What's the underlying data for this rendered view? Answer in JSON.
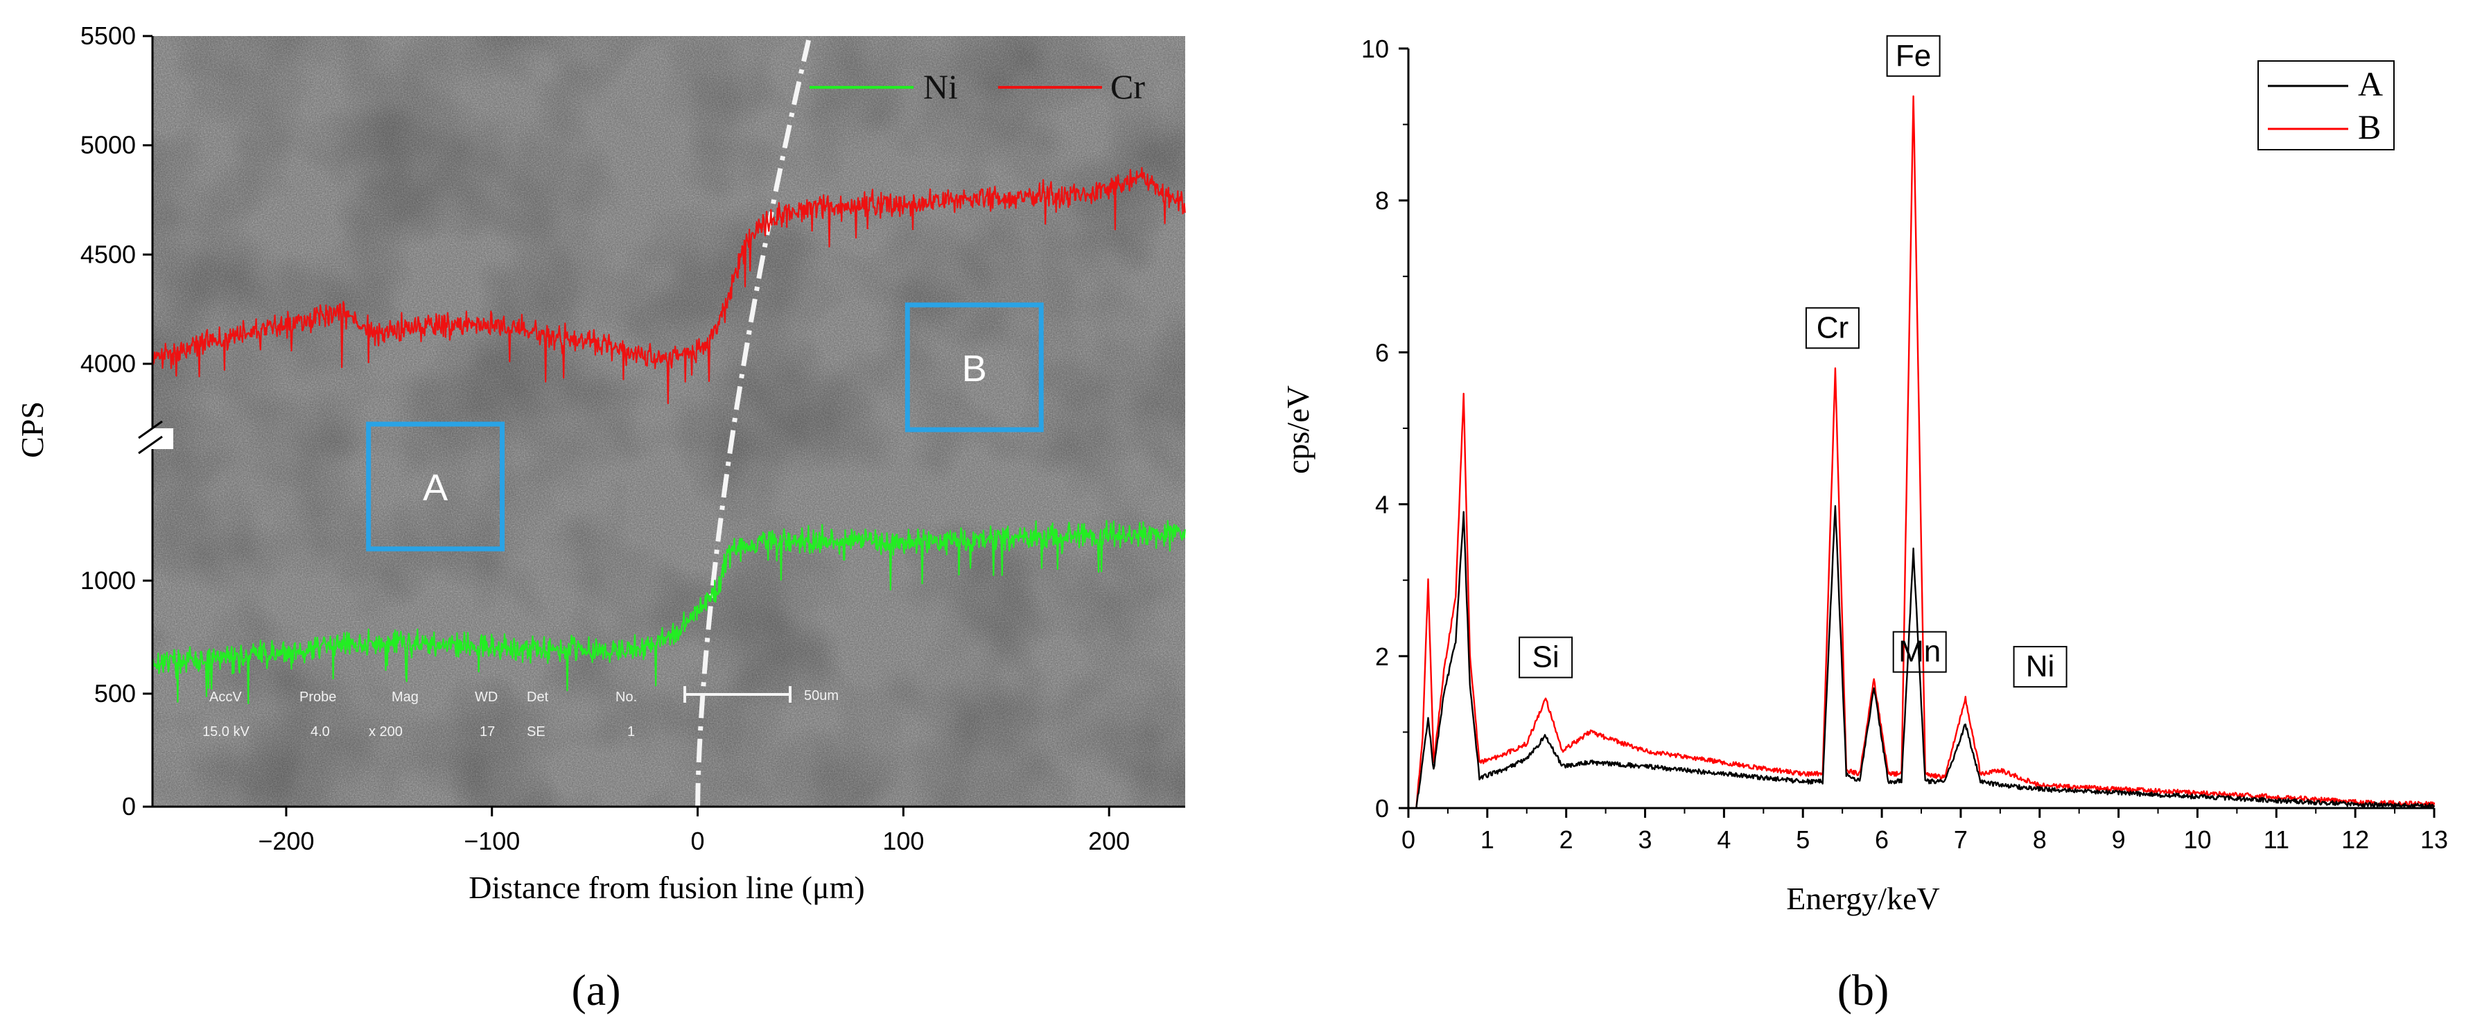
{
  "figure": {
    "panel_a_label": "(a)",
    "panel_b_label": "(b)",
    "panel_a_label_letter": "a",
    "panel_b_label_letter": "b"
  },
  "chart_data": [
    {
      "id": "a",
      "type": "line",
      "title": "",
      "xlabel": "Distance from fusion line (μm)",
      "ylabel": "CPS",
      "xlim": [
        -265,
        237
      ],
      "y_axis_broken": true,
      "ylim_lower": [
        0,
        1300
      ],
      "ylim_upper": [
        3800,
        5500
      ],
      "x_ticks": [
        -200,
        -100,
        0,
        100,
        200
      ],
      "x_tick_labels": [
        "−200",
        "−100",
        "0",
        "100",
        "200"
      ],
      "y_ticks": [
        0,
        500,
        1000,
        4000,
        4500,
        5000,
        5500
      ],
      "y_tick_labels": [
        "0",
        "500",
        "1000",
        "4000",
        "4500",
        "5000",
        "5500"
      ],
      "legend": {
        "position": "top-right",
        "entries": [
          "Ni",
          "Cr"
        ]
      },
      "background": "SEM micrograph",
      "fusion_line_x": 0,
      "region_boxes": [
        {
          "label": "A",
          "x_range": [
            -160,
            -95
          ]
        },
        {
          "label": "B",
          "x_range": [
            102,
            167
          ]
        }
      ],
      "sem_info": {
        "headers": [
          "AccV",
          "Probe",
          "Mag",
          "WD",
          "Det",
          "No."
        ],
        "values": [
          "15.0 kV",
          "4.0",
          "x 200",
          "17",
          "SE",
          "1"
        ],
        "scale_bar": "50um"
      },
      "series": [
        {
          "name": "Ni",
          "color": "#22ee22",
          "x": [
            -265,
            -240,
            -200,
            -170,
            -140,
            -100,
            -60,
            -30,
            -10,
            0,
            10,
            15,
            30,
            60,
            100,
            130,
            160,
            200,
            237
          ],
          "y": [
            640,
            650,
            680,
            720,
            730,
            700,
            700,
            690,
            760,
            880,
            960,
            1130,
            1170,
            1180,
            1170,
            1180,
            1190,
            1200,
            1210
          ]
        },
        {
          "name": "Cr",
          "color": "#ee1111",
          "x": [
            -265,
            -240,
            -200,
            -175,
            -160,
            -130,
            -100,
            -70,
            -50,
            -30,
            -15,
            -5,
            5,
            15,
            25,
            40,
            60,
            100,
            130,
            160,
            200,
            215,
            237
          ],
          "y": [
            4020,
            4100,
            4180,
            4250,
            4150,
            4170,
            4180,
            4120,
            4100,
            4040,
            4020,
            4050,
            4100,
            4300,
            4600,
            4680,
            4720,
            4730,
            4750,
            4760,
            4790,
            4860,
            4720
          ]
        }
      ]
    },
    {
      "id": "b",
      "type": "line",
      "title": "",
      "xlabel": "Energy/keV",
      "ylabel": "cps/eV",
      "xlim": [
        0,
        13
      ],
      "ylim": [
        0,
        10
      ],
      "x_ticks": [
        0,
        1,
        2,
        3,
        4,
        5,
        6,
        7,
        8,
        9,
        10,
        11,
        12,
        13
      ],
      "y_ticks": [
        0,
        2,
        4,
        6,
        8,
        10
      ],
      "legend": {
        "position": "top-right",
        "entries": [
          "A",
          "B"
        ]
      },
      "annotations": [
        {
          "text": "Fe",
          "x": 6.4,
          "y": 9.4
        },
        {
          "text": "Cr",
          "x": 5.41,
          "y": 5.8
        },
        {
          "text": "Mn",
          "x": 5.9,
          "y": 1.7
        },
        {
          "text": "Si",
          "x": 1.74,
          "y": 1.5
        },
        {
          "text": "Ni",
          "x": 7.48,
          "y": 1.45
        }
      ],
      "series": [
        {
          "name": "A",
          "color": "#000000",
          "x": [
            0.1,
            0.18,
            0.25,
            0.32,
            0.45,
            0.6,
            0.7,
            0.78,
            0.9,
            1.2,
            1.5,
            1.74,
            1.95,
            2.3,
            3,
            4,
            5,
            5.25,
            5.41,
            5.55,
            5.72,
            5.9,
            6.08,
            6.25,
            6.4,
            6.55,
            6.8,
            7.06,
            7.25,
            7.5,
            8,
            9,
            10,
            11,
            12,
            13
          ],
          "y": [
            0,
            0.6,
            1.2,
            0.5,
            1.5,
            2.2,
            3.9,
            1.6,
            0.4,
            0.5,
            0.65,
            0.95,
            0.55,
            0.6,
            0.55,
            0.45,
            0.35,
            0.35,
            4.0,
            0.45,
            0.35,
            1.6,
            0.35,
            0.35,
            3.4,
            0.35,
            0.35,
            1.1,
            0.35,
            0.3,
            0.25,
            0.2,
            0.15,
            0.1,
            0.05,
            0.03
          ]
        },
        {
          "name": "B",
          "color": "#ff0000",
          "x": [
            0.1,
            0.18,
            0.25,
            0.32,
            0.45,
            0.6,
            0.7,
            0.78,
            0.9,
            1.2,
            1.5,
            1.74,
            1.95,
            2.3,
            3,
            4,
            5,
            5.25,
            5.41,
            5.55,
            5.72,
            5.9,
            6.08,
            6.25,
            6.4,
            6.55,
            6.8,
            7.06,
            7.25,
            7.5,
            8,
            9,
            10,
            11,
            12,
            13
          ],
          "y": [
            0,
            0.9,
            3.0,
            0.6,
            1.8,
            2.8,
            5.45,
            2.0,
            0.6,
            0.7,
            0.85,
            1.45,
            0.75,
            1.0,
            0.75,
            0.6,
            0.45,
            0.45,
            5.8,
            0.5,
            0.45,
            1.7,
            0.45,
            0.45,
            9.4,
            0.45,
            0.4,
            1.45,
            0.45,
            0.5,
            0.3,
            0.25,
            0.2,
            0.15,
            0.08,
            0.05
          ]
        }
      ]
    }
  ]
}
